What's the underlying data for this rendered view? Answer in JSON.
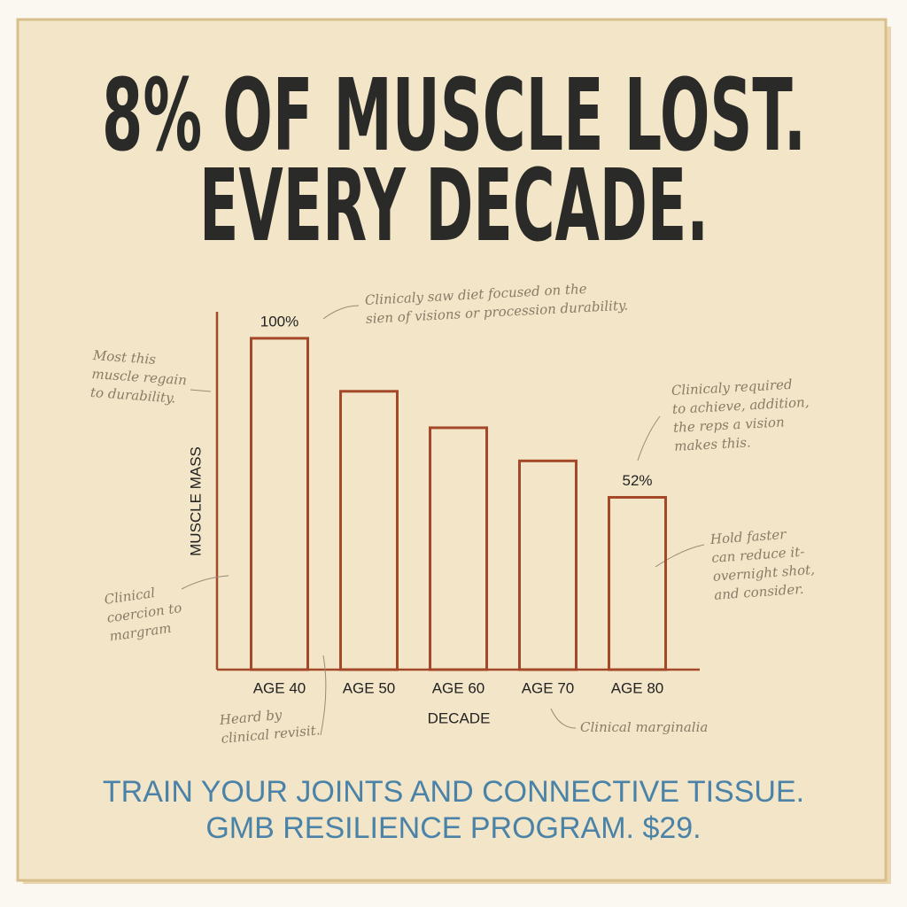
{
  "chart_data": {
    "type": "bar",
    "title_lines": [
      "8% OF MUSCLE LOST.",
      "EVERY DECADE."
    ],
    "x_label": "DECADE",
    "y_label": "MUSCLE MASS",
    "categories": [
      "AGE 40",
      "AGE 50",
      "AGE 60",
      "AGE 70",
      "AGE 80"
    ],
    "values": [
      100,
      84,
      73,
      63,
      52
    ],
    "value_labels": [
      "100%",
      null,
      null,
      null,
      "52%"
    ],
    "color": "#a4482a",
    "ylim": [
      0,
      108
    ],
    "annotations": [
      {
        "lines": [
          "Clinicaly saw diet focused on the",
          "sien of visions or procession durability."
        ]
      },
      {
        "lines": [
          "Most this",
          "muscle regain",
          "to durability."
        ]
      },
      {
        "lines": [
          "Clinicaly required",
          "to achieve, addition,",
          "the reps a vision",
          "makes this."
        ]
      },
      {
        "lines": [
          "Hold faster",
          "can reduce it-",
          "overnight shot,",
          "and consider."
        ]
      },
      {
        "lines": [
          "Clinical",
          "coercion to",
          "margram"
        ]
      },
      {
        "lines": [
          "Heard by",
          "clinical revisit."
        ]
      },
      {
        "lines": [
          "Clinical marginalia"
        ]
      }
    ],
    "footer_lines": [
      "TRAIN YOUR JOINTS AND CONNECTIVE TISSUE.",
      "GMB RESILIENCE PROGRAM. $29."
    ]
  }
}
